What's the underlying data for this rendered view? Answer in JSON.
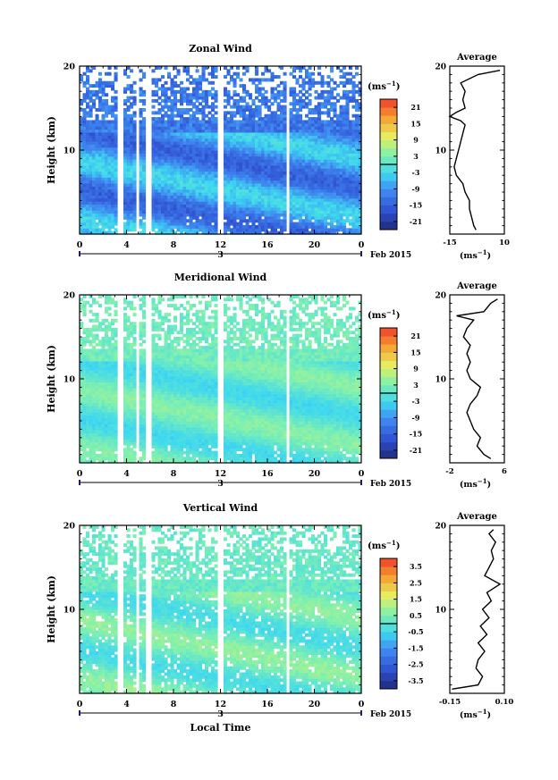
{
  "chart_data": [
    {
      "type": "heatmap",
      "title": "Zonal Wind",
      "ylabel": "Height (km)",
      "ylim": [
        0,
        20
      ],
      "y_ticks": [
        "10",
        "20"
      ],
      "xlim": [
        0,
        24
      ],
      "x_ticks": [
        "0",
        "4",
        "8",
        "12",
        "16",
        "20",
        "0"
      ],
      "date_marker": "3",
      "date_suffix": "Feb 2015",
      "colorbar": {
        "unit": "(ms",
        "unit_exp": "−1",
        "unit_close": ")",
        "ticks": [
          "21",
          "15",
          "9",
          "3",
          "-3",
          "-9",
          "-15",
          "-21"
        ],
        "range": [
          -24,
          24
        ]
      },
      "fill": {
        "low_value": -15,
        "high_value": -3,
        "top_value": -12
      },
      "avg_profile": {
        "title": "Average",
        "xlabel": "(ms",
        "xlabel_exp": "−1",
        "xlabel_close": ")",
        "x_ticks": [
          "-15",
          "10"
        ],
        "xlim": [
          -15,
          10
        ],
        "y_ticks": [
          "10",
          "20"
        ],
        "height_km": [
          0.5,
          1,
          2,
          3,
          4,
          5,
          6,
          7,
          8,
          9,
          10,
          11,
          12,
          13,
          13.5,
          14,
          14.5,
          15,
          16,
          17,
          18,
          19,
          19.5
        ],
        "value": [
          -3,
          -4,
          -5,
          -6,
          -6,
          -8,
          -9,
          -12,
          -13,
          -12,
          -11,
          -10,
          -9,
          -8,
          -10,
          -15,
          -12,
          -8,
          -9,
          -8,
          -10,
          -2,
          8
        ]
      }
    },
    {
      "type": "heatmap",
      "title": "Meridional Wind",
      "ylabel": "Height (km)",
      "ylim": [
        0,
        20
      ],
      "y_ticks": [
        "10",
        "20"
      ],
      "xlim": [
        0,
        24
      ],
      "x_ticks": [
        "0",
        "4",
        "8",
        "12",
        "16",
        "20",
        "0"
      ],
      "date_marker": "3",
      "date_suffix": "Feb 2015",
      "colorbar": {
        "unit": "(ms",
        "unit_exp": "−1",
        "unit_close": ")",
        "ticks": [
          "21",
          "15",
          "9",
          "3",
          "-3",
          "-9",
          "-15",
          "-21"
        ],
        "range": [
          -24,
          24
        ]
      },
      "fill": {
        "low_value": -3,
        "high_value": 4,
        "top_value": 2
      },
      "avg_profile": {
        "title": "Average",
        "xlabel": "(ms",
        "xlabel_exp": "−1",
        "xlabel_close": ")",
        "x_ticks": [
          "-2",
          "6"
        ],
        "xlim": [
          -2,
          6
        ],
        "y_ticks": [
          "10",
          "20"
        ],
        "height_km": [
          0.5,
          1,
          2,
          3,
          4,
          5,
          6,
          7,
          8,
          9,
          10,
          11,
          12,
          13,
          14,
          15,
          16,
          17,
          17.5,
          18,
          19,
          19.5
        ],
        "value": [
          4,
          3,
          2,
          2.5,
          1.5,
          1,
          0.5,
          1,
          2,
          2.5,
          1,
          0.5,
          1,
          0.5,
          1,
          0,
          0.5,
          1.5,
          -1,
          3,
          4,
          5
        ]
      }
    },
    {
      "type": "heatmap",
      "title": "Vertical Wind",
      "xlabel": "Local Time",
      "ylabel": "Height (km)",
      "ylim": [
        0,
        20
      ],
      "y_ticks": [
        "10",
        "20"
      ],
      "xlim": [
        0,
        24
      ],
      "x_ticks": [
        "0",
        "4",
        "8",
        "12",
        "16",
        "20",
        "0"
      ],
      "date_marker": "3",
      "date_suffix": "Feb 2015",
      "colorbar": {
        "unit": "(ms",
        "unit_exp": "−1",
        "unit_close": ")",
        "ticks": [
          "3.5",
          "2.5",
          "1.5",
          "0.5",
          "-0.5",
          "-1.5",
          "-2.5",
          "-3.5"
        ],
        "range": [
          -4,
          4
        ]
      },
      "fill": {
        "low_value": -0.4,
        "high_value": 0.8,
        "top_value": 0.2
      },
      "avg_profile": {
        "title": "Average",
        "xlabel": "(ms",
        "xlabel_exp": "−1",
        "xlabel_close": ")",
        "x_ticks": [
          "-0.15",
          "0.10"
        ],
        "xlim": [
          -0.15,
          0.1
        ],
        "y_ticks": [
          "10",
          "20"
        ],
        "height_km": [
          0.5,
          1,
          2,
          3,
          4,
          5,
          6,
          7,
          8,
          9,
          10,
          11,
          12,
          13,
          14,
          15,
          16,
          17,
          18,
          19,
          19.5
        ],
        "value": [
          -0.14,
          -0.02,
          0.0,
          -0.03,
          -0.02,
          0.01,
          -0.02,
          0.02,
          -0.01,
          0.03,
          0.0,
          0.04,
          0.02,
          0.08,
          0.01,
          0.03,
          0.05,
          0.04,
          0.06,
          0.03,
          0.05
        ]
      }
    }
  ]
}
